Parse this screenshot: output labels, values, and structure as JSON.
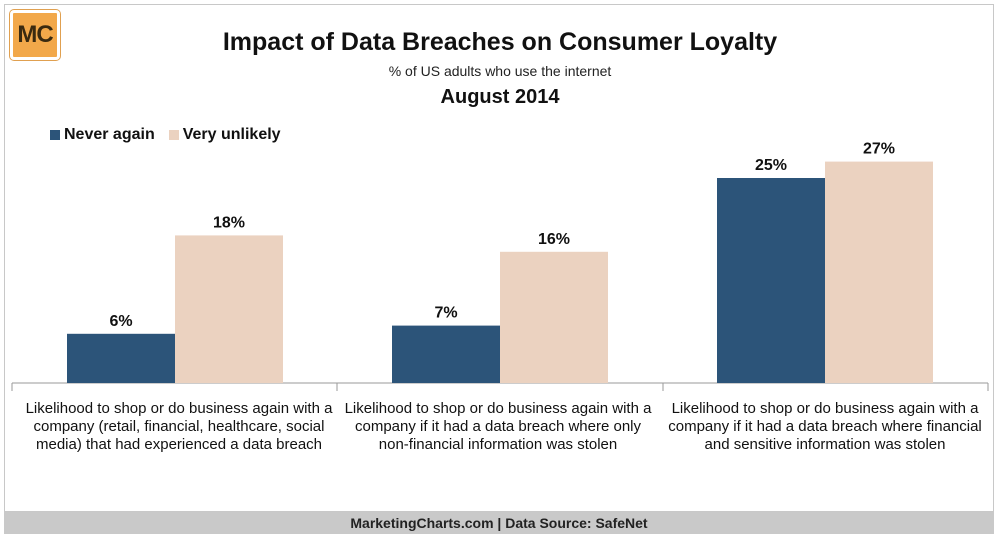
{
  "logo": {
    "text": "MC"
  },
  "chart_data": {
    "type": "bar",
    "title": "Impact of Data Breaches on Consumer Loyalty",
    "subtitle": "% of US adults who use the internet",
    "date": "August 2014",
    "categories": [
      "Likelihood to shop or do business again with a company (retail, financial, healthcare, social media) that had experienced a data breach",
      "Likelihood to shop or do business again with a company if it had a data breach where only non-financial information was stolen",
      "Likelihood to shop or do business again with a company if it had a data breach where financial and sensitive information was stolen"
    ],
    "series": [
      {
        "name": "Never again",
        "values": [
          6,
          7,
          25
        ],
        "labels": [
          "6%",
          "7%",
          "25%"
        ],
        "color": "#2c5479"
      },
      {
        "name": "Very unlikely",
        "values": [
          18,
          16,
          27
        ],
        "labels": [
          "18%",
          "16%",
          "27%"
        ],
        "color": "#ebd2c0"
      }
    ],
    "ylim": [
      0,
      30
    ],
    "grid": false,
    "legend": "top-left"
  },
  "footer": {
    "text": "MarketingCharts.com | Data Source: SafeNet"
  }
}
